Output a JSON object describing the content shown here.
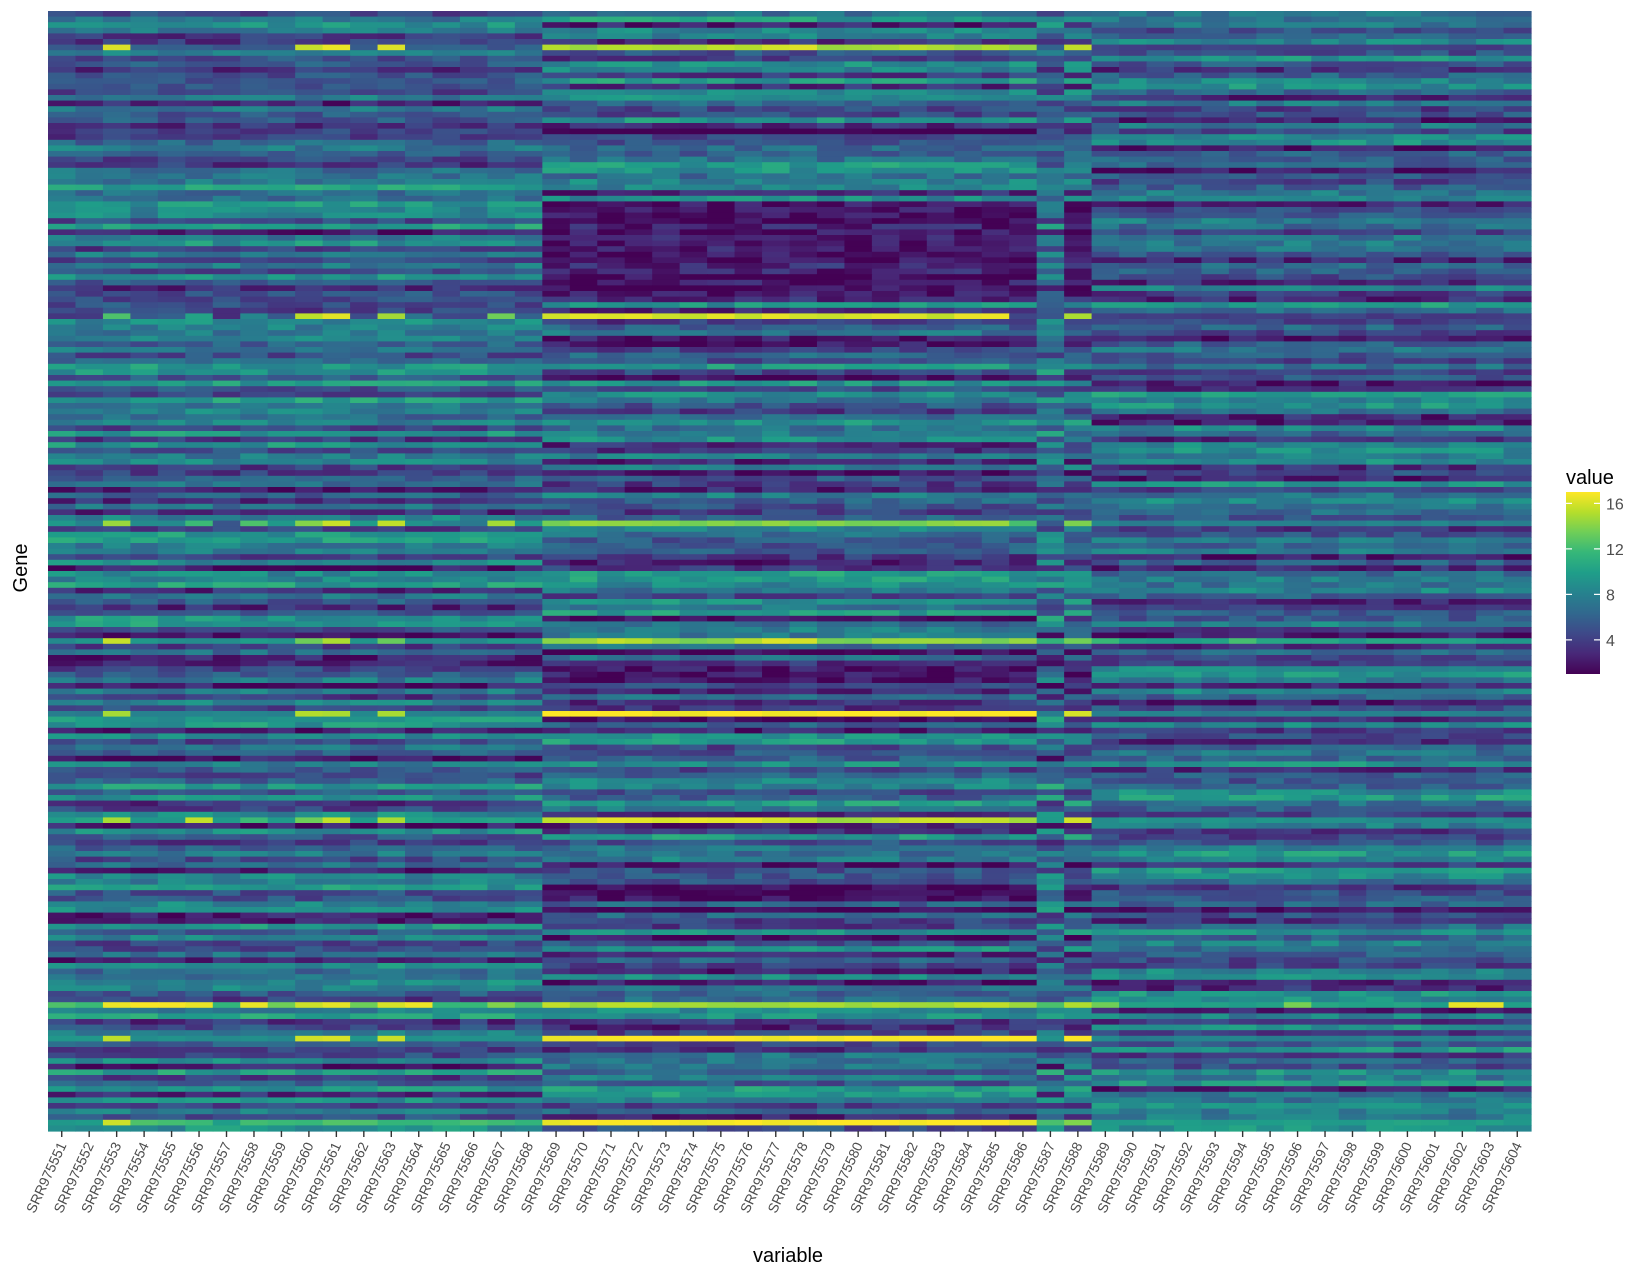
{
  "chart_data": {
    "type": "heatmap",
    "title": "",
    "xlabel": "variable",
    "ylabel": "Gene",
    "x_categories": [
      "SRR975551",
      "SRR975552",
      "SRR975553",
      "SRR975554",
      "SRR975555",
      "SRR975556",
      "SRR975557",
      "SRR975558",
      "SRR975559",
      "SRR975560",
      "SRR975561",
      "SRR975562",
      "SRR975563",
      "SRR975564",
      "SRR975565",
      "SRR975566",
      "SRR975567",
      "SRR975568",
      "SRR975569",
      "SRR975570",
      "SRR975571",
      "SRR975572",
      "SRR975573",
      "SRR975574",
      "SRR975575",
      "SRR975576",
      "SRR975577",
      "SRR975578",
      "SRR975579",
      "SRR975580",
      "SRR975581",
      "SRR975582",
      "SRR975583",
      "SRR975584",
      "SRR975585",
      "SRR975586",
      "SRR975587",
      "SRR975588",
      "SRR975589",
      "SRR975590",
      "SRR975591",
      "SRR975592",
      "SRR975593",
      "SRR975594",
      "SRR975595",
      "SRR975596",
      "SRR975597",
      "SRR975598",
      "SRR975599",
      "SRR975600",
      "SRR975601",
      "SRR975602",
      "SRR975603",
      "SRR975604"
    ],
    "y_tick_labels_shown": false,
    "gene_rows": 200,
    "color_scale": {
      "name": "viridis",
      "min": 1,
      "max": 17,
      "stops": [
        "#440154",
        "#482878",
        "#3e4989",
        "#31688e",
        "#26828e",
        "#1f9e89",
        "#35b779",
        "#6ece58",
        "#b5de2b",
        "#fde725"
      ]
    },
    "legend": {
      "title": "value",
      "ticks": [
        4,
        8,
        12,
        16
      ],
      "placement": "right"
    },
    "row_profiles": [
      {
        "row_fraction": 0.03,
        "note_values": [
          6,
          5,
          16,
          6,
          6,
          6,
          5,
          6,
          6,
          16,
          16,
          6,
          16,
          6,
          6,
          6,
          5,
          6,
          15,
          15,
          15,
          15,
          15,
          15,
          15,
          15,
          16,
          16,
          15,
          15,
          15,
          15,
          15,
          15,
          15,
          15,
          6,
          15,
          4,
          4,
          4,
          4,
          4,
          4,
          4,
          4,
          4,
          4,
          4,
          4,
          4,
          4,
          4,
          4
        ]
      },
      {
        "row_fraction": 0.27,
        "note_values": [
          4,
          4,
          12,
          5,
          6,
          10,
          3,
          8,
          6,
          15,
          16,
          5,
          15,
          7,
          5,
          5,
          14,
          6,
          16,
          16,
          16,
          16,
          16,
          16,
          16,
          16,
          16,
          16,
          16,
          16,
          16,
          16,
          16,
          16,
          16,
          4,
          5,
          15,
          4,
          4,
          4,
          4,
          4,
          4,
          4,
          4,
          4,
          4,
          4,
          4,
          4,
          4,
          4,
          4
        ]
      },
      {
        "row_fraction": 0.455,
        "note_values": [
          9,
          8,
          14,
          9,
          9,
          12,
          5,
          13,
          9,
          14,
          16,
          10,
          16,
          9,
          8,
          8,
          15,
          9,
          14,
          14,
          14,
          14,
          14,
          14,
          14,
          14,
          14,
          14,
          14,
          14,
          14,
          14,
          14,
          15,
          15,
          12,
          6,
          14,
          8,
          8,
          8,
          8,
          8,
          8,
          8,
          8,
          8,
          8,
          8,
          8,
          8,
          8,
          8,
          8
        ]
      },
      {
        "row_fraction": 0.562,
        "note_values": [
          9,
          9,
          16,
          9,
          9,
          9,
          9,
          10,
          9,
          13,
          15,
          9,
          13,
          9,
          9,
          9,
          10,
          9,
          14,
          14,
          16,
          15,
          14,
          14,
          14,
          15,
          16,
          16,
          14,
          14,
          14,
          14,
          14,
          14,
          14,
          14,
          12,
          14,
          12,
          10,
          10,
          10,
          10,
          12,
          10,
          10,
          10,
          10,
          10,
          10,
          10,
          10,
          10,
          10
        ]
      },
      {
        "row_fraction": 0.626,
        "note_values": [
          8,
          8,
          15,
          8,
          8,
          8,
          8,
          8,
          8,
          15,
          15,
          8,
          15,
          8,
          8,
          8,
          8,
          8,
          17,
          17,
          17,
          17,
          17,
          17,
          17,
          17,
          17,
          17,
          17,
          17,
          17,
          17,
          17,
          17,
          17,
          17,
          8,
          16,
          8,
          8,
          8,
          8,
          8,
          8,
          8,
          8,
          8,
          8,
          8,
          8,
          8,
          8,
          8,
          8
        ]
      },
      {
        "row_fraction": 0.723,
        "note_values": [
          10,
          10,
          15,
          10,
          10,
          15,
          10,
          12,
          10,
          13,
          15,
          10,
          15,
          10,
          10,
          10,
          11,
          10,
          16,
          16,
          16,
          16,
          16,
          16,
          16,
          16,
          16,
          16,
          15,
          15,
          15,
          16,
          16,
          16,
          16,
          15,
          10,
          16,
          9,
          9,
          9,
          9,
          9,
          9,
          9,
          9,
          9,
          9,
          9,
          9,
          9,
          9,
          9,
          9
        ]
      },
      {
        "row_fraction": 0.89,
        "note_values": [
          12,
          12,
          16,
          17,
          17,
          17,
          12,
          16,
          14,
          16,
          16,
          14,
          16,
          17,
          12,
          12,
          14,
          12,
          15,
          15,
          15,
          15,
          15,
          15,
          15,
          15,
          15,
          15,
          15,
          15,
          15,
          15,
          15,
          15,
          15,
          15,
          12,
          15,
          13,
          10,
          10,
          10,
          10,
          10,
          10,
          14,
          10,
          10,
          10,
          10,
          10,
          17,
          17,
          10
        ]
      },
      {
        "row_fraction": 0.918,
        "note_values": [
          9,
          9,
          15,
          9,
          9,
          9,
          9,
          9,
          9,
          16,
          16,
          9,
          16,
          9,
          9,
          9,
          9,
          9,
          17,
          17,
          17,
          17,
          17,
          17,
          17,
          17,
          17,
          17,
          17,
          17,
          17,
          17,
          17,
          17,
          17,
          17,
          9,
          17,
          8,
          8,
          8,
          8,
          8,
          8,
          8,
          8,
          8,
          8,
          8,
          8,
          8,
          8,
          8,
          8
        ]
      },
      {
        "row_fraction": 0.995,
        "note_values": [
          10,
          10,
          16,
          12,
          12,
          12,
          10,
          12,
          12,
          12,
          12,
          12,
          12,
          12,
          12,
          12,
          12,
          12,
          17,
          17,
          17,
          17,
          17,
          17,
          17,
          17,
          17,
          17,
          17,
          17,
          17,
          17,
          17,
          17,
          17,
          17,
          12,
          14,
          10,
          10,
          10,
          10,
          10,
          10,
          10,
          10,
          10,
          10,
          10,
          10,
          10,
          10,
          10,
          10
        ]
      }
    ]
  }
}
